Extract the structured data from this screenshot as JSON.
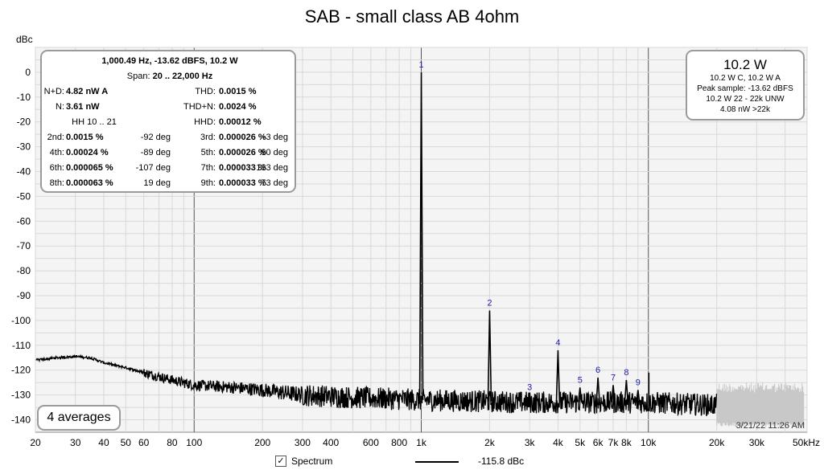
{
  "chart_data": {
    "type": "line",
    "title": "SAB - small class AB 4ohm",
    "ylabel": "dBc",
    "xlabel": "",
    "x_scale": "log",
    "xlim": [
      20,
      50000
    ],
    "ylim": [
      -145,
      10
    ],
    "grid": true,
    "x_tick_labels": [
      "20",
      "30",
      "40",
      "50",
      "60",
      "80",
      "100",
      "200",
      "300",
      "400",
      "600",
      "800",
      "1k",
      "2k",
      "3k",
      "4k",
      "5k",
      "6k",
      "7k",
      "8k",
      "10k",
      "20k",
      "30k",
      "50kHz"
    ],
    "x_tick_values": [
      20,
      30,
      40,
      50,
      60,
      80,
      100,
      200,
      300,
      400,
      600,
      800,
      1000,
      2000,
      3000,
      4000,
      5000,
      6000,
      7000,
      8000,
      10000,
      20000,
      30000,
      50000
    ],
    "y_ticks": [
      0,
      -10,
      -20,
      -30,
      -40,
      -50,
      -60,
      -70,
      -80,
      -90,
      -100,
      -110,
      -120,
      -130,
      -140
    ],
    "series": [
      {
        "name": "Spectrum",
        "color": "#000000",
        "noise_floor": [
          [
            20,
            -116
          ],
          [
            25,
            -115
          ],
          [
            30,
            -114.5
          ],
          [
            35,
            -115
          ],
          [
            40,
            -117
          ],
          [
            50,
            -119
          ],
          [
            60,
            -121
          ],
          [
            80,
            -124
          ],
          [
            100,
            -126
          ],
          [
            150,
            -127
          ],
          [
            200,
            -128
          ],
          [
            300,
            -130
          ],
          [
            500,
            -131
          ],
          [
            1000,
            -132
          ],
          [
            3000,
            -133
          ],
          [
            10000,
            -133
          ],
          [
            18000,
            -134
          ]
        ],
        "peaks": [
          {
            "label": "1",
            "x": 1000.49,
            "y": 0
          },
          {
            "label": "2",
            "x": 2000,
            "y": -96
          },
          {
            "label": "3",
            "x": 3000,
            "y": -130
          },
          {
            "label": "4",
            "x": 4000,
            "y": -112
          },
          {
            "label": "5",
            "x": 5000,
            "y": -127
          },
          {
            "label": "6",
            "x": 6000,
            "y": -123
          },
          {
            "label": "7",
            "x": 7000,
            "y": -126
          },
          {
            "label": "8",
            "x": 8000,
            "y": -124
          },
          {
            "label": "9",
            "x": 9000,
            "y": -128
          }
        ],
        "spurs": [
          [
            10050,
            -121
          ]
        ]
      }
    ],
    "grey_region": {
      "x": [
        20000,
        50000
      ],
      "y": [
        -143,
        -125
      ],
      "color": "#c8c8c8"
    }
  },
  "stats": {
    "header": "1,000.49 Hz, -13.62 dBFS, 10.2 W",
    "span_label": "Span:",
    "span_value": "20 .. 22,000 Hz",
    "rows": [
      {
        "l1": "N+D:",
        "v1": "4.82 nW A",
        "l2": "THD:",
        "v2": "0.0015 %"
      },
      {
        "l1": "N:",
        "v1": "3.61 nW",
        "l2": "THD+N:",
        "v2": "0.0024 %"
      },
      {
        "l1": "HH 10 .. 21",
        "v1": "",
        "l2": "HHD:",
        "v2": "0.00012 %"
      }
    ],
    "harmonics": [
      {
        "l1": "2nd:",
        "v1": "0.0015 %",
        "d1": "-92 deg",
        "l2": "3rd:",
        "v2": "0.000026 %",
        "d2": "-3 deg"
      },
      {
        "l1": "4th:",
        "v1": "0.00024 %",
        "d1": "-89 deg",
        "l2": "5th:",
        "v2": "0.000026 %",
        "d2": "90 deg"
      },
      {
        "l1": "6th:",
        "v1": "0.000065 %",
        "d1": "-107 deg",
        "l2": "7th:",
        "v2": "0.000033 %",
        "d2": "133 deg"
      },
      {
        "l1": "8th:",
        "v1": "0.000063 %",
        "d1": "19 deg",
        "l2": "9th:",
        "v2": "0.000033 %",
        "d2": "73 deg"
      }
    ]
  },
  "power": {
    "main": "10.2 W",
    "lines": [
      "10.2 W C, 10.2 W A",
      "Peak sample: -13.62 dBFS",
      "10.2 W 22 - 22k  UNW",
      "4.08 nW >22k"
    ]
  },
  "averages": "4 averages",
  "timestamp": "3/21/22 11:26 AM",
  "legend": {
    "checked": true,
    "check_glyph": "✓",
    "label": "Spectrum",
    "value": "-115.8 dBc"
  },
  "colors": {
    "grid_minor": "#d8d8d8",
    "grid_major": "#555555",
    "peak_label": "#2222aa",
    "plot_bg": "#f4f4f4"
  }
}
